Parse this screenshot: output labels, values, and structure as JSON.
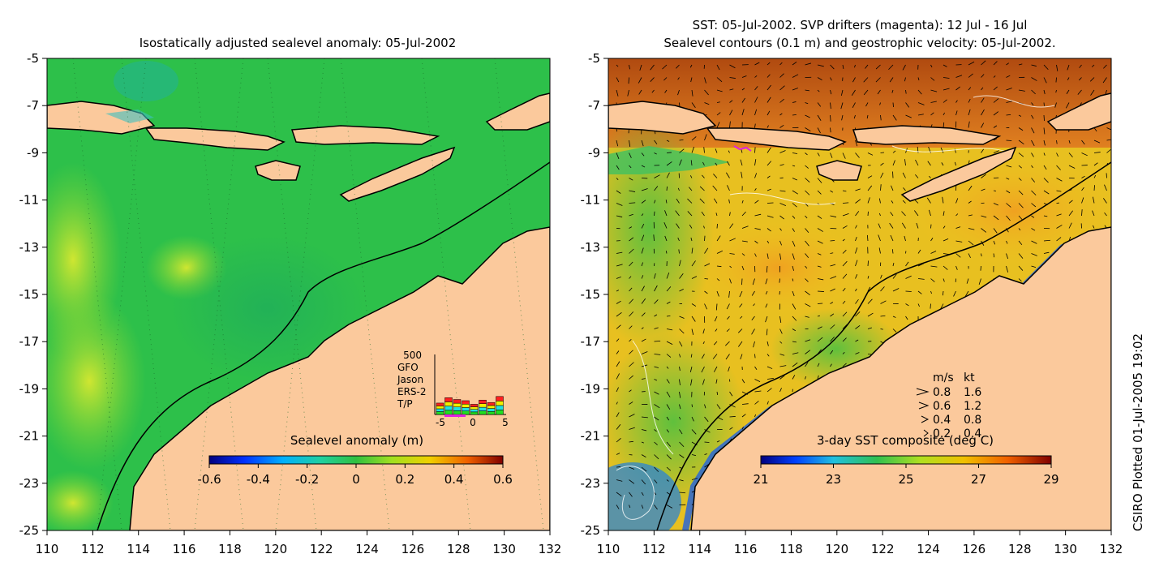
{
  "left_panel": {
    "title": "Isostatically adjusted sealevel anomaly: 05-Jul-2002",
    "y_ticks": [
      "-5",
      "-7",
      "-9",
      "-11",
      "-13",
      "-15",
      "-17",
      "-19",
      "-21",
      "-23",
      "-25"
    ],
    "x_ticks": [
      "110",
      "112",
      "114",
      "116",
      "118",
      "120",
      "122",
      "124",
      "126",
      "128",
      "130",
      "132"
    ],
    "colorbar": {
      "title": "Sealevel anomaly (m)",
      "ticks": [
        "-0.6",
        "-0.4",
        "-0.2",
        "0",
        "0.2",
        "0.4",
        "0.6"
      ]
    },
    "inset": {
      "max_label": "500",
      "legend": [
        {
          "label": "GFO",
          "color": "#ff2020"
        },
        {
          "label": "Jason",
          "color": "#f0f000"
        },
        {
          "label": "ERS-2",
          "color": "#20e0e0"
        },
        {
          "label": "T/P",
          "color": "#20e020"
        }
      ],
      "x_ticks": [
        "-5",
        "0",
        "5"
      ],
      "bar_totals": [
        95,
        140,
        125,
        115,
        85,
        120,
        100,
        150
      ]
    }
  },
  "right_panel": {
    "title_line1": "SST: 05-Jul-2002. SVP drifters (magenta): 12 Jul - 16 Jul",
    "title_line2": "Sealevel contours (0.1 m) and geostrophic velocity: 05-Jul-2002.",
    "y_ticks": [
      "-5",
      "-7",
      "-9",
      "-11",
      "-13",
      "-15",
      "-17",
      "-19",
      "-21",
      "-23",
      "-25"
    ],
    "x_ticks": [
      "110",
      "112",
      "114",
      "116",
      "118",
      "120",
      "122",
      "124",
      "126",
      "128",
      "130",
      "132"
    ],
    "colorbar": {
      "title": "3-day SST composite (deg C)",
      "ticks": [
        "21",
        "23",
        "25",
        "27",
        "29"
      ]
    },
    "velocity_legend": {
      "header_ms": "m/s",
      "header_kt": "kt",
      "rows": [
        {
          "ms": "0.8",
          "kt": "1.6"
        },
        {
          "ms": "0.6",
          "kt": "1.2"
        },
        {
          "ms": "0.4",
          "kt": "0.8"
        },
        {
          "ms": "0.2",
          "kt": "0.4"
        }
      ]
    }
  },
  "credit": "CSIRO Plotted 01-Jul-2005 19:02",
  "colors": {
    "land": "#fbc99c",
    "ocean_green": "#2dc04a",
    "ocean_yellow": "#c8e020",
    "sst_orange": "#f0a020",
    "sst_brown": "#b05010"
  }
}
